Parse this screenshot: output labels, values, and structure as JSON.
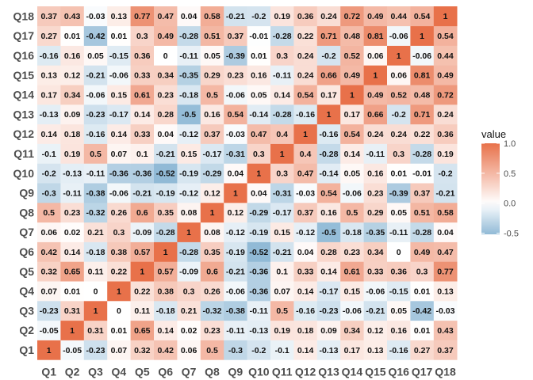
{
  "chart_data": {
    "type": "heatmap",
    "variables": [
      "Q1",
      "Q2",
      "Q3",
      "Q4",
      "Q5",
      "Q6",
      "Q7",
      "Q8",
      "Q9",
      "Q10",
      "Q11",
      "Q12",
      "Q13",
      "Q14",
      "Q15",
      "Q16",
      "Q17",
      "Q18"
    ],
    "matrix": [
      [
        1,
        -0.05,
        -0.23,
        0.07,
        0.32,
        0.42,
        0.06,
        0.5,
        -0.3,
        -0.2,
        -0.1,
        0.14,
        -0.13,
        0.17,
        0.13,
        -0.16,
        0.27,
        0.37
      ],
      [
        -0.05,
        1,
        0.31,
        0.01,
        0.65,
        0.14,
        0.02,
        0.23,
        -0.11,
        -0.13,
        0.19,
        0.18,
        0.09,
        0.34,
        0.12,
        0.16,
        0.01,
        0.43
      ],
      [
        -0.23,
        0.31,
        1,
        0,
        0.11,
        -0.18,
        0.21,
        -0.32,
        -0.38,
        -0.11,
        0.5,
        -0.16,
        -0.23,
        -0.06,
        -0.21,
        0.05,
        -0.42,
        -0.03
      ],
      [
        0.07,
        0.01,
        0,
        1,
        0.22,
        0.38,
        0.3,
        0.26,
        -0.06,
        -0.36,
        0.07,
        0.14,
        -0.17,
        0.15,
        -0.06,
        -0.15,
        0.01,
        0.13
      ],
      [
        0.32,
        0.65,
        0.11,
        0.22,
        1,
        0.57,
        -0.09,
        0.6,
        -0.21,
        -0.36,
        0.1,
        0.33,
        0.14,
        0.61,
        0.33,
        0.36,
        0.3,
        0.77
      ],
      [
        0.42,
        0.14,
        -0.18,
        0.38,
        0.57,
        1,
        -0.28,
        0.35,
        -0.19,
        -0.52,
        -0.21,
        0.04,
        0.28,
        0.23,
        0.34,
        0,
        0.49,
        0.47
      ],
      [
        0.06,
        0.02,
        0.21,
        0.3,
        -0.09,
        -0.28,
        1,
        0.08,
        -0.12,
        -0.19,
        0.15,
        -0.12,
        -0.5,
        -0.18,
        -0.35,
        -0.11,
        -0.28,
        0.04
      ],
      [
        0.5,
        0.23,
        -0.32,
        0.26,
        0.6,
        0.35,
        0.08,
        1,
        0.12,
        -0.29,
        -0.17,
        0.37,
        0.16,
        0.5,
        0.29,
        0.05,
        0.51,
        0.58
      ],
      [
        -0.3,
        -0.11,
        -0.38,
        -0.06,
        -0.21,
        -0.19,
        -0.12,
        0.12,
        1,
        0.04,
        -0.31,
        -0.03,
        0.54,
        -0.06,
        0.23,
        -0.39,
        0.37,
        -0.21
      ],
      [
        -0.2,
        -0.13,
        -0.11,
        -0.36,
        -0.36,
        -0.52,
        -0.19,
        -0.29,
        0.04,
        1,
        0.3,
        0.47,
        -0.14,
        0.05,
        0.16,
        0.01,
        -0.01,
        -0.2
      ],
      [
        -0.1,
        0.19,
        0.5,
        0.07,
        0.1,
        -0.21,
        0.15,
        -0.17,
        -0.31,
        0.3,
        1,
        0.4,
        -0.28,
        0.14,
        -0.11,
        0.3,
        -0.28,
        0.19
      ],
      [
        0.14,
        0.18,
        -0.16,
        0.14,
        0.33,
        0.04,
        -0.12,
        0.37,
        -0.03,
        0.47,
        0.4,
        1,
        -0.16,
        0.54,
        0.24,
        0.24,
        0.22,
        0.36
      ],
      [
        -0.13,
        0.09,
        -0.23,
        -0.17,
        0.14,
        0.28,
        -0.5,
        0.16,
        0.54,
        -0.14,
        -0.28,
        -0.16,
        1,
        0.17,
        0.66,
        -0.2,
        0.71,
        0.24
      ],
      [
        0.17,
        0.34,
        -0.06,
        0.15,
        0.61,
        0.23,
        -0.18,
        0.5,
        -0.06,
        0.05,
        0.14,
        0.54,
        0.17,
        1,
        0.49,
        0.52,
        0.48,
        0.72
      ],
      [
        0.13,
        0.12,
        -0.21,
        -0.06,
        0.33,
        0.34,
        -0.35,
        0.29,
        0.23,
        0.16,
        -0.11,
        0.24,
        0.66,
        0.49,
        1,
        0.06,
        0.81,
        0.49
      ],
      [
        -0.16,
        0.16,
        0.05,
        -0.15,
        0.36,
        0,
        -0.11,
        0.05,
        -0.39,
        0.01,
        0.3,
        0.24,
        -0.2,
        0.52,
        0.06,
        1,
        -0.06,
        0.44
      ],
      [
        0.27,
        0.01,
        -0.42,
        0.01,
        0.3,
        0.49,
        -0.28,
        0.51,
        0.37,
        -0.01,
        -0.28,
        0.22,
        0.71,
        0.48,
        0.81,
        -0.06,
        1,
        0.54
      ],
      [
        0.37,
        0.43,
        -0.03,
        0.13,
        0.77,
        0.47,
        0.04,
        0.58,
        -0.21,
        -0.2,
        0.19,
        0.36,
        0.24,
        0.72,
        0.49,
        0.44,
        0.54,
        1
      ]
    ],
    "legend": {
      "title": "value",
      "ticks": [
        1.0,
        0.5,
        0.0,
        -0.5
      ],
      "tick_labels": [
        "1.0",
        "0.5",
        "0.0",
        "-0.5"
      ],
      "range": [
        -0.52,
        1.0
      ],
      "placement": "right"
    },
    "colors": {
      "low": "#91bad6",
      "mid": "#ffffff",
      "high": "#e8714a"
    },
    "grid": false
  }
}
